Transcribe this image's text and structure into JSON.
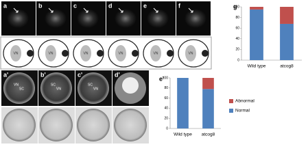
{
  "top_panels": [
    "a",
    "b",
    "c",
    "d",
    "e",
    "f"
  ],
  "diagram_label": "VN",
  "bottom_panels": [
    {
      "label": "a'",
      "notes": [
        "VN",
        "SC"
      ]
    },
    {
      "label": "b'",
      "notes": [
        "SC",
        "VN"
      ]
    },
    {
      "label": "c'",
      "notes": [
        "SC",
        "VN"
      ]
    },
    {
      "label": "d'",
      "notes": []
    }
  ],
  "chart_data": [
    {
      "type": "bar",
      "stacked": true,
      "label": "g",
      "categories": [
        "Wild type",
        "atcog8"
      ],
      "series": [
        {
          "name": "Normal",
          "color": "#4f81bd",
          "values": [
            95,
            68
          ]
        },
        {
          "name": "Abnormal",
          "color": "#c0504d",
          "values": [
            5,
            32
          ]
        }
      ],
      "ylim": [
        0,
        100
      ],
      "yticks": [
        0,
        20,
        40,
        60,
        80,
        100
      ],
      "legend": false
    },
    {
      "type": "bar",
      "stacked": true,
      "label": "e'",
      "categories": [
        "Wild type",
        "atcog8"
      ],
      "series": [
        {
          "name": "Normal",
          "color": "#4f81bd",
          "values": [
            100,
            78
          ]
        },
        {
          "name": "Abnormal",
          "color": "#c0504d",
          "values": [
            0,
            22
          ]
        }
      ],
      "ylim": [
        0,
        100
      ],
      "yticks": [
        0,
        20,
        40,
        60,
        80,
        100
      ],
      "legend": true
    }
  ]
}
